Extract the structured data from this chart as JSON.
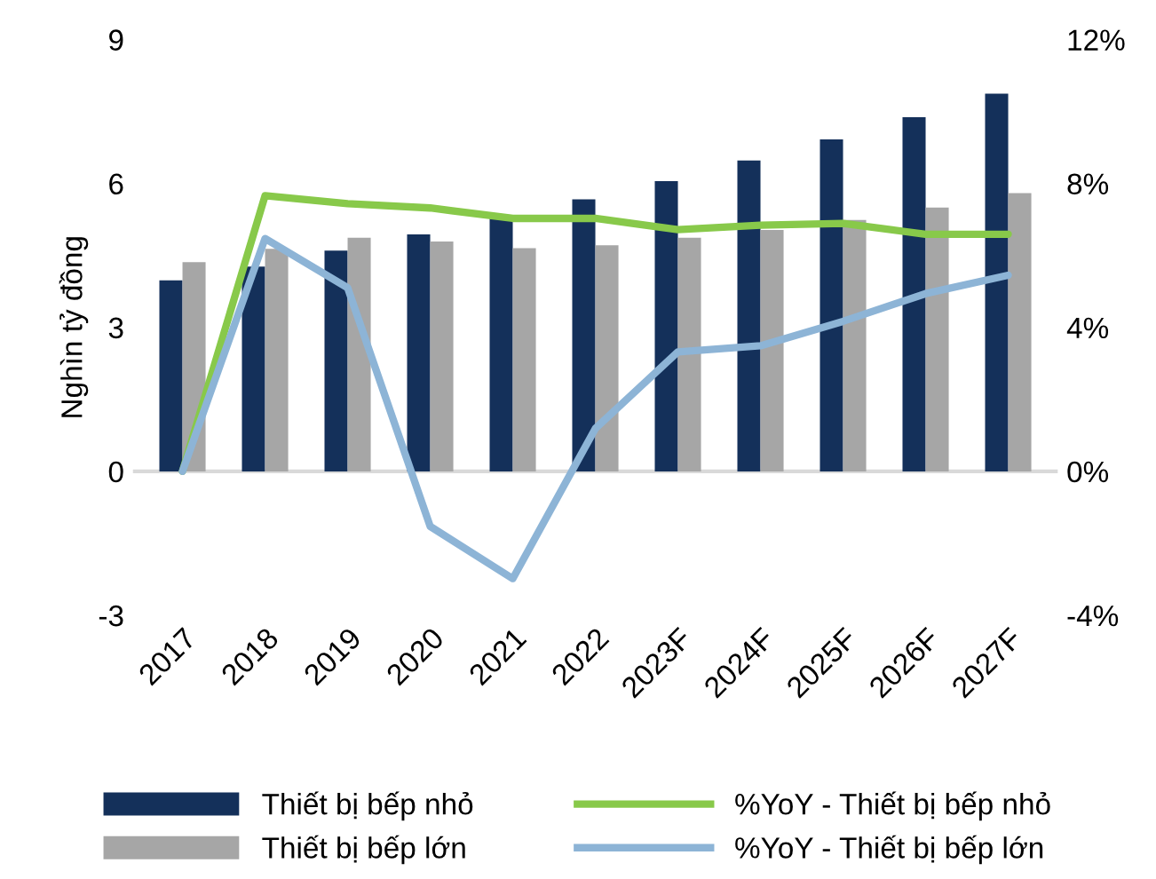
{
  "chart_data": {
    "type": "bar",
    "ylabel": "Nghìn tỷ đồng",
    "categories": [
      "2017",
      "2018",
      "2019",
      "2020",
      "2021",
      "2022",
      "2023F",
      "2024F",
      "2025F",
      "2026F",
      "2027F"
    ],
    "series": [
      {
        "name": "Thiết bị bếp nhỏ",
        "color": "#14305a",
        "values": [
          3.98,
          4.27,
          4.6,
          4.94,
          5.27,
          5.67,
          6.05,
          6.48,
          6.92,
          7.38,
          7.87
        ]
      },
      {
        "name": "Thiết bị bếp lớn",
        "color": "#a6a6a6",
        "values": [
          4.36,
          4.64,
          4.87,
          4.79,
          4.65,
          4.71,
          4.87,
          5.03,
          5.24,
          5.5,
          5.8
        ]
      },
      {
        "name": "%YoY - Thiết bị bếp nhỏ",
        "type": "line",
        "axis": "y2",
        "color": "#88c94a",
        "values": [
          0,
          7.66,
          7.44,
          7.32,
          7.03,
          7.03,
          6.72,
          6.84,
          6.89,
          6.59,
          6.59
        ]
      },
      {
        "name": "%YoY - Thiết bị bếp lớn",
        "type": "line",
        "axis": "y2",
        "color": "#8db4d6",
        "values": [
          0,
          6.47,
          5.1,
          -1.53,
          -2.98,
          1.19,
          3.32,
          3.49,
          4.17,
          4.94,
          5.45
        ]
      }
    ],
    "ylim": [
      -3,
      9
    ],
    "yticks": [
      -3,
      0,
      3,
      6,
      9
    ],
    "y2lim": [
      -4,
      12
    ],
    "y2ticks": [
      {
        "value": -4,
        "label": "-4%"
      },
      {
        "value": 0,
        "label": "0%"
      },
      {
        "value": 4,
        "label": "4%"
      },
      {
        "value": 8,
        "label": "8%"
      },
      {
        "value": 12,
        "label": "12%"
      }
    ],
    "ref_lines": [
      {
        "axis": "y",
        "value": 0,
        "color": "#d9d9d9"
      }
    ],
    "grid": false,
    "legend": "bottom",
    "marker": "none",
    "line_style": "solid"
  }
}
